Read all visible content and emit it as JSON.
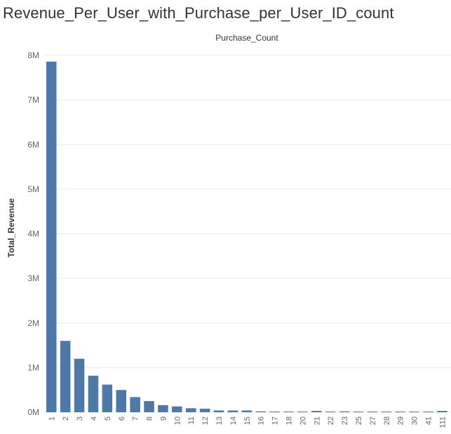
{
  "chart_data": {
    "type": "bar",
    "title": "Revenue_Per_User_with_Purchase_per_User_ID_count",
    "column_header": "Purchase_Count",
    "xlabel": "",
    "ylabel": "Total_Revenue",
    "ylim": [
      0,
      8000000
    ],
    "yticks": [
      {
        "value": 0,
        "label": "0M"
      },
      {
        "value": 1000000,
        "label": "1M"
      },
      {
        "value": 2000000,
        "label": "2M"
      },
      {
        "value": 3000000,
        "label": "3M"
      },
      {
        "value": 4000000,
        "label": "4M"
      },
      {
        "value": 5000000,
        "label": "5M"
      },
      {
        "value": 6000000,
        "label": "6M"
      },
      {
        "value": 7000000,
        "label": "7M"
      },
      {
        "value": 8000000,
        "label": "8M"
      }
    ],
    "grid": true,
    "bar_color": "#4e79a7",
    "categories": [
      "1",
      "2",
      "3",
      "4",
      "5",
      "6",
      "7",
      "8",
      "9",
      "10",
      "11",
      "12",
      "13",
      "14",
      "15",
      "16",
      "17",
      "18",
      "20",
      "21",
      "22",
      "23",
      "25",
      "27",
      "28",
      "29",
      "30",
      "41",
      "111"
    ],
    "values": [
      7860000,
      1600000,
      1200000,
      820000,
      620000,
      500000,
      340000,
      250000,
      160000,
      130000,
      90000,
      80000,
      40000,
      40000,
      40000,
      20000,
      15000,
      15000,
      15000,
      30000,
      5000,
      20000,
      5000,
      5000,
      5000,
      5000,
      15000,
      5000,
      30000
    ]
  }
}
